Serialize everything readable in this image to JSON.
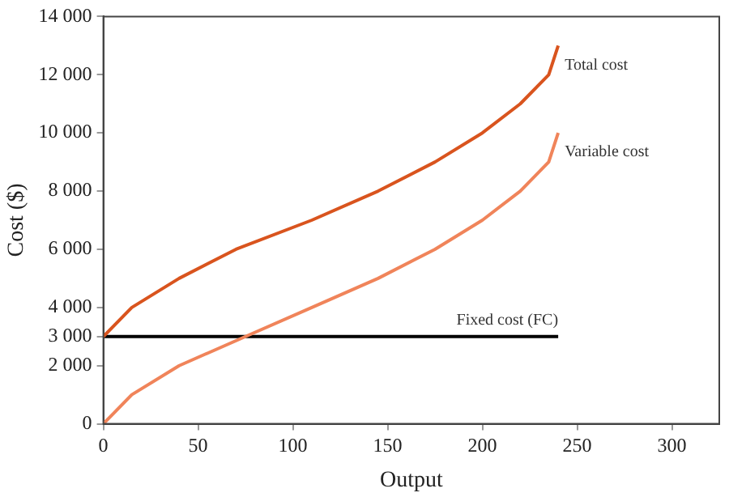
{
  "chart_data": {
    "type": "line",
    "xlabel": "Output",
    "ylabel": "Cost ($)",
    "xlim": [
      0,
      325
    ],
    "xticks": [
      0,
      50,
      100,
      150,
      200,
      250,
      300
    ],
    "ylim": [
      0,
      14000
    ],
    "yticks": [
      0,
      {
        "value": 2000,
        "label": "2 000"
      },
      {
        "value": 3000,
        "label": "3 000"
      },
      {
        "value": 4000,
        "label": "4 000"
      },
      {
        "value": 6000,
        "label": "6 000"
      },
      {
        "value": 8000,
        "label": "8 000"
      },
      {
        "value": 10000,
        "label": "10 000"
      },
      {
        "value": 12000,
        "label": "12 000"
      },
      {
        "value": 14000,
        "label": "14 000"
      }
    ],
    "grid": false,
    "legend": false,
    "marker": "none",
    "line_style": "solid",
    "series": [
      {
        "name": "Total cost",
        "color": "#d9541e",
        "x": [
          0,
          15,
          40,
          70,
          110,
          145,
          175,
          200,
          220,
          235,
          240
        ],
        "values": [
          3000,
          4000,
          5000,
          6000,
          7000,
          8000,
          9000,
          10000,
          11000,
          12000,
          13000
        ]
      },
      {
        "name": "Variable cost",
        "color": "#f0845a",
        "x": [
          0,
          15,
          40,
          75,
          110,
          145,
          175,
          200,
          220,
          235,
          240
        ],
        "values": [
          0,
          1000,
          2000,
          3000,
          4000,
          5000,
          6000,
          7000,
          8000,
          9000,
          10000
        ]
      },
      {
        "name": "Fixed cost (FC)",
        "color": "#000000",
        "x": [
          0,
          240
        ],
        "values": [
          3000,
          3000
        ]
      }
    ]
  }
}
